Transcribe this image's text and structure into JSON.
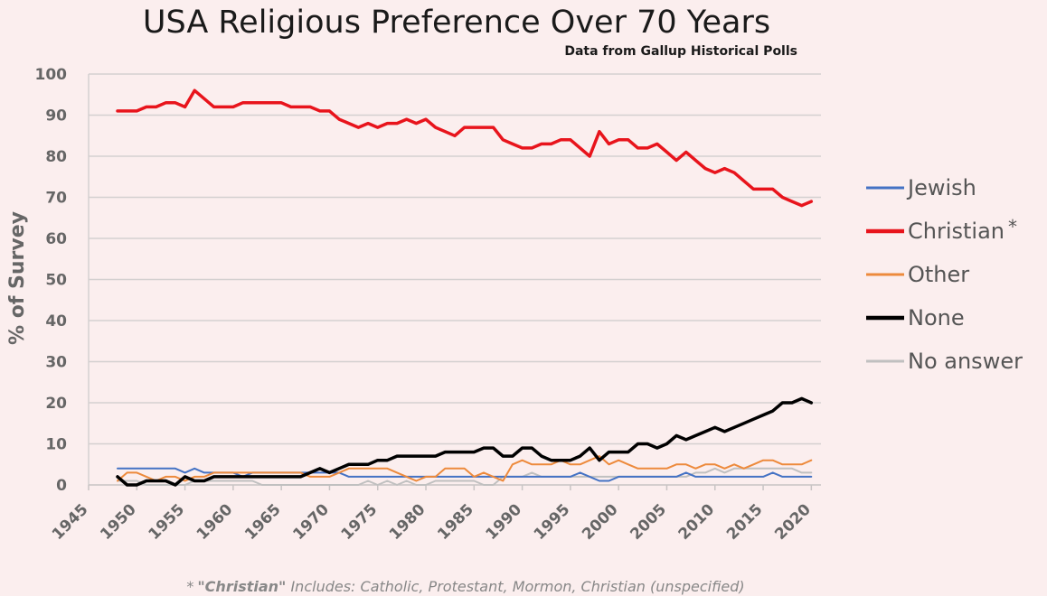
{
  "chart_data": {
    "type": "line",
    "title": "USA Religious Preference Over 70 Years",
    "subtitle": "Data from Gallup Historical Polls",
    "ylabel": "% of Survey",
    "xlabel": "",
    "xlim": [
      1945,
      2021
    ],
    "ylim": [
      0,
      100
    ],
    "x_ticks": [
      1945,
      1950,
      1955,
      1960,
      1965,
      1970,
      1975,
      1980,
      1985,
      1990,
      1995,
      2000,
      2005,
      2010,
      2015,
      2020
    ],
    "y_ticks": [
      0,
      10,
      20,
      30,
      40,
      50,
      60,
      70,
      80,
      90,
      100
    ],
    "grid": "horizontal",
    "legend_position": "right",
    "footnote": {
      "marker": "*",
      "bold": "\"Christian\"",
      "text": " Includes:  Catholic,  Protestant, Mormon, Christian (unspecified)"
    },
    "series": [
      {
        "name": "Christian",
        "legend_label": "Christian",
        "legend_marker": "*",
        "color": "#e8141c",
        "width": 3.5,
        "x": [
          1948,
          1949,
          1950,
          1951,
          1952,
          1953,
          1954,
          1955,
          1956,
          1957,
          1958,
          1959,
          1960,
          1961,
          1962,
          1963,
          1964,
          1965,
          1966,
          1967,
          1968,
          1969,
          1970,
          1971,
          1972,
          1973,
          1974,
          1975,
          1976,
          1977,
          1978,
          1979,
          1980,
          1981,
          1982,
          1983,
          1984,
          1985,
          1986,
          1987,
          1988,
          1989,
          1990,
          1991,
          1992,
          1993,
          1994,
          1995,
          1996,
          1997,
          1998,
          1999,
          2000,
          2001,
          2002,
          2003,
          2004,
          2005,
          2006,
          2007,
          2008,
          2009,
          2010,
          2011,
          2012,
          2013,
          2014,
          2015,
          2016,
          2017,
          2018,
          2019,
          2020
        ],
        "values": [
          91,
          91,
          91,
          92,
          92,
          93,
          93,
          92,
          96,
          94,
          92,
          92,
          92,
          93,
          93,
          93,
          93,
          93,
          92,
          92,
          92,
          91,
          91,
          89,
          88,
          87,
          88,
          87,
          88,
          88,
          89,
          88,
          89,
          87,
          86,
          85,
          87,
          87,
          87,
          87,
          84,
          83,
          82,
          82,
          83,
          83,
          84,
          84,
          82,
          80,
          86,
          83,
          84,
          84,
          82,
          82,
          83,
          81,
          79,
          81,
          79,
          77,
          76,
          77,
          76,
          74,
          72,
          72,
          72,
          70,
          69,
          68,
          69
        ]
      },
      {
        "name": "None",
        "legend_label": "None",
        "color": "#000000",
        "width": 3.5,
        "x": [
          1948,
          1949,
          1950,
          1951,
          1952,
          1953,
          1954,
          1955,
          1956,
          1957,
          1958,
          1959,
          1960,
          1961,
          1962,
          1963,
          1964,
          1965,
          1966,
          1967,
          1968,
          1969,
          1970,
          1971,
          1972,
          1973,
          1974,
          1975,
          1976,
          1977,
          1978,
          1979,
          1980,
          1981,
          1982,
          1983,
          1984,
          1985,
          1986,
          1987,
          1988,
          1989,
          1990,
          1991,
          1992,
          1993,
          1994,
          1995,
          1996,
          1997,
          1998,
          1999,
          2000,
          2001,
          2002,
          2003,
          2004,
          2005,
          2006,
          2007,
          2008,
          2009,
          2010,
          2011,
          2012,
          2013,
          2014,
          2015,
          2016,
          2017,
          2018,
          2019,
          2020
        ],
        "values": [
          2,
          0,
          0,
          1,
          1,
          1,
          0,
          2,
          1,
          1,
          2,
          2,
          2,
          2,
          2,
          2,
          2,
          2,
          2,
          2,
          3,
          4,
          3,
          4,
          5,
          5,
          5,
          6,
          6,
          7,
          7,
          7,
          7,
          7,
          8,
          8,
          8,
          8,
          9,
          9,
          7,
          7,
          9,
          9,
          7,
          6,
          6,
          6,
          7,
          9,
          6,
          8,
          8,
          8,
          10,
          10,
          9,
          10,
          12,
          11,
          12,
          13,
          14,
          13,
          14,
          15,
          16,
          17,
          18,
          20,
          20,
          21,
          20
        ]
      },
      {
        "name": "Other",
        "legend_label": "Other",
        "color": "#ed8a3c",
        "width": 2,
        "x": [
          1948,
          1949,
          1950,
          1951,
          1952,
          1953,
          1954,
          1955,
          1956,
          1957,
          1958,
          1959,
          1960,
          1961,
          1962,
          1963,
          1964,
          1965,
          1966,
          1967,
          1968,
          1969,
          1970,
          1971,
          1972,
          1973,
          1974,
          1975,
          1976,
          1977,
          1978,
          1979,
          1980,
          1981,
          1982,
          1983,
          1984,
          1985,
          1986,
          1987,
          1988,
          1989,
          1990,
          1991,
          1992,
          1993,
          1994,
          1995,
          1996,
          1997,
          1998,
          1999,
          2000,
          2001,
          2002,
          2003,
          2004,
          2005,
          2006,
          2007,
          2008,
          2009,
          2010,
          2011,
          2012,
          2013,
          2014,
          2015,
          2016,
          2017,
          2018,
          2019,
          2020
        ],
        "values": [
          1,
          3,
          3,
          2,
          1,
          2,
          2,
          1,
          2,
          2,
          3,
          3,
          3,
          3,
          3,
          3,
          3,
          3,
          3,
          3,
          2,
          2,
          2,
          3,
          4,
          4,
          4,
          4,
          4,
          3,
          2,
          1,
          2,
          2,
          4,
          4,
          4,
          2,
          3,
          2,
          1,
          5,
          6,
          5,
          5,
          5,
          6,
          5,
          5,
          6,
          7,
          5,
          6,
          5,
          4,
          4,
          4,
          4,
          5,
          5,
          4,
          5,
          5,
          4,
          5,
          4,
          5,
          6,
          6,
          5,
          5,
          5,
          6
        ]
      },
      {
        "name": "Jewish",
        "legend_label": "Jewish",
        "color": "#4472c4",
        "width": 2,
        "x": [
          1948,
          1949,
          1950,
          1951,
          1952,
          1953,
          1954,
          1955,
          1956,
          1957,
          1958,
          1959,
          1960,
          1961,
          1962,
          1963,
          1964,
          1965,
          1966,
          1967,
          1968,
          1969,
          1970,
          1971,
          1972,
          1973,
          1974,
          1975,
          1976,
          1977,
          1978,
          1979,
          1980,
          1981,
          1982,
          1983,
          1984,
          1985,
          1986,
          1987,
          1988,
          1989,
          1990,
          1991,
          1992,
          1993,
          1994,
          1995,
          1996,
          1997,
          1998,
          1999,
          2000,
          2001,
          2002,
          2003,
          2004,
          2005,
          2006,
          2007,
          2008,
          2009,
          2010,
          2011,
          2012,
          2013,
          2014,
          2015,
          2016,
          2017,
          2018,
          2019,
          2020
        ],
        "values": [
          4,
          4,
          4,
          4,
          4,
          4,
          4,
          3,
          4,
          3,
          3,
          3,
          3,
          2,
          3,
          3,
          3,
          3,
          3,
          3,
          3,
          3,
          3,
          3,
          2,
          2,
          2,
          2,
          2,
          2,
          2,
          2,
          2,
          2,
          2,
          2,
          2,
          2,
          2,
          2,
          2,
          2,
          2,
          2,
          2,
          2,
          2,
          2,
          3,
          2,
          1,
          1,
          2,
          2,
          2,
          2,
          2,
          2,
          2,
          3,
          2,
          2,
          2,
          2,
          2,
          2,
          2,
          2,
          3,
          2,
          2,
          2,
          2
        ]
      },
      {
        "name": "No answer",
        "legend_label": "No answer",
        "color": "#c0c0c0",
        "width": 2,
        "x": [
          1948,
          1949,
          1950,
          1951,
          1952,
          1953,
          1954,
          1955,
          1956,
          1957,
          1958,
          1959,
          1960,
          1961,
          1962,
          1963,
          1964,
          1965,
          1966,
          1967,
          1968,
          1969,
          1970,
          1971,
          1972,
          1973,
          1974,
          1975,
          1976,
          1977,
          1978,
          1979,
          1980,
          1981,
          1982,
          1983,
          1984,
          1985,
          1986,
          1987,
          1988,
          1989,
          1990,
          1991,
          1992,
          1993,
          1994,
          1995,
          1996,
          1997,
          1998,
          1999,
          2000,
          2001,
          2002,
          2003,
          2004,
          2005,
          2006,
          2007,
          2008,
          2009,
          2010,
          2011,
          2012,
          2013,
          2014,
          2015,
          2016,
          2017,
          2018,
          2019,
          2020
        ],
        "values": [
          1,
          1,
          1,
          0,
          0,
          0,
          0,
          0,
          1,
          1,
          1,
          1,
          1,
          1,
          1,
          0,
          0,
          0,
          0,
          0,
          0,
          0,
          0,
          0,
          0,
          0,
          1,
          0,
          1,
          0,
          1,
          0,
          0,
          1,
          1,
          1,
          1,
          1,
          0,
          0,
          2,
          2,
          2,
          3,
          2,
          2,
          2,
          2,
          2,
          2,
          2,
          2,
          2,
          2,
          2,
          2,
          2,
          2,
          2,
          2,
          3,
          3,
          4,
          3,
          4,
          4,
          4,
          4,
          4,
          4,
          4,
          3,
          3
        ]
      }
    ],
    "legend_order": [
      "Jewish",
      "Christian",
      "Other",
      "None",
      "No answer"
    ]
  }
}
